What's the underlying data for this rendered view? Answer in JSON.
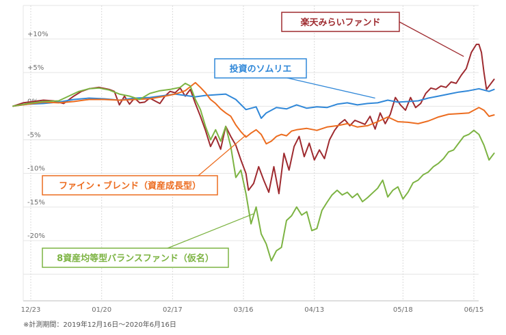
{
  "chart_data": {
    "type": "line",
    "xlabel": "",
    "ylabel": "",
    "ylim": [
      -29,
      14
    ],
    "y_ticks": [
      {
        "value": 10,
        "label": "+10%"
      },
      {
        "value": 5,
        "label": "+5%"
      },
      {
        "value": 0,
        "label": "0%"
      },
      {
        "value": -5,
        "label": "-5%"
      },
      {
        "value": -10,
        "label": "-10%"
      },
      {
        "value": -15,
        "label": "-15%"
      },
      {
        "value": -20,
        "label": "-20%"
      }
    ],
    "x_ticks": [
      {
        "label": "12/23",
        "day": 7
      },
      {
        "label": "01/20",
        "day": 35
      },
      {
        "label": "02/17",
        "day": 63
      },
      {
        "label": "03/16",
        "day": 91
      },
      {
        "label": "04/13",
        "day": 119
      },
      {
        "label": "05/18",
        "day": 154
      },
      {
        "label": "06/15",
        "day": 182
      }
    ],
    "x_range_days": [
      0,
      183
    ],
    "grid": true,
    "series": [
      {
        "name": "楽天みらいファンド",
        "color": "#9e2a2f",
        "points": [
          [
            0,
            0
          ],
          [
            4,
            0.5
          ],
          [
            8,
            0.7
          ],
          [
            12,
            0.9
          ],
          [
            16,
            0.8
          ],
          [
            20,
            0.4
          ],
          [
            24,
            1.5
          ],
          [
            27,
            2.2
          ],
          [
            30,
            2.6
          ],
          [
            34,
            2.8
          ],
          [
            38,
            2.5
          ],
          [
            40,
            2.2
          ],
          [
            42,
            0.2
          ],
          [
            44,
            1.5
          ],
          [
            46,
            0.3
          ],
          [
            48,
            1.2
          ],
          [
            50,
            0.5
          ],
          [
            52,
            0.6
          ],
          [
            54,
            1.2
          ],
          [
            56,
            0.8
          ],
          [
            58,
            0.4
          ],
          [
            60,
            1.5
          ],
          [
            62,
            2.2
          ],
          [
            64,
            2.0
          ],
          [
            66,
            2.7
          ],
          [
            68,
            1.5
          ],
          [
            70,
            2.5
          ],
          [
            72,
            0.4
          ],
          [
            74,
            -1.5
          ],
          [
            76,
            -3.6
          ],
          [
            78,
            -6.0
          ],
          [
            80,
            -4.5
          ],
          [
            82,
            -6.4
          ],
          [
            84,
            -3.0
          ],
          [
            86,
            -4.5
          ],
          [
            88,
            -5.8
          ],
          [
            90,
            -8.0
          ],
          [
            92,
            -10.0
          ],
          [
            93,
            -12.5
          ],
          [
            95,
            -11.5
          ],
          [
            97,
            -9.0
          ],
          [
            99,
            -11.0
          ],
          [
            101,
            -12.8
          ],
          [
            103,
            -9.0
          ],
          [
            105,
            -13.0
          ],
          [
            107,
            -7.0
          ],
          [
            109,
            -9.5
          ],
          [
            111,
            -6.0
          ],
          [
            113,
            -4.5
          ],
          [
            115,
            -7.5
          ],
          [
            117,
            -5.5
          ],
          [
            119,
            -8.0
          ],
          [
            121,
            -6.5
          ],
          [
            123,
            -7.8
          ],
          [
            125,
            -5.0
          ],
          [
            127,
            -3.6
          ],
          [
            129,
            -2.6
          ],
          [
            131,
            -2.0
          ],
          [
            133,
            -2.9
          ],
          [
            135,
            -2.1
          ],
          [
            137,
            -2.4
          ],
          [
            139,
            -2.7
          ],
          [
            141,
            -1.5
          ],
          [
            143,
            -3.4
          ],
          [
            145,
            -1.0
          ],
          [
            147,
            -2.6
          ],
          [
            149,
            -1.2
          ],
          [
            151,
            1.3
          ],
          [
            153,
            0.2
          ],
          [
            155,
            -0.6
          ],
          [
            157,
            1.3
          ],
          [
            159,
            -0.2
          ],
          [
            161,
            0.4
          ],
          [
            163,
            1.9
          ],
          [
            165,
            2.7
          ],
          [
            167,
            2.5
          ],
          [
            169,
            3.0
          ],
          [
            171,
            2.8
          ],
          [
            173,
            3.6
          ],
          [
            175,
            3.4
          ],
          [
            177,
            4.6
          ],
          [
            179,
            5.6
          ],
          [
            181,
            8.0
          ],
          [
            183,
            9.2
          ],
          [
            184,
            9.2
          ],
          [
            185,
            8.0
          ],
          [
            186,
            5.0
          ],
          [
            187,
            2.5
          ],
          [
            188,
            3.0
          ],
          [
            190,
            4.0
          ]
        ]
      },
      {
        "name": "投資のソムリエ",
        "color": "#2f87d8",
        "points": [
          [
            0,
            0
          ],
          [
            6,
            0.3
          ],
          [
            12,
            0.4
          ],
          [
            18,
            0.6
          ],
          [
            24,
            1.0
          ],
          [
            30,
            1.2
          ],
          [
            36,
            1.1
          ],
          [
            42,
            0.9
          ],
          [
            48,
            1.2
          ],
          [
            54,
            1.3
          ],
          [
            60,
            1.6
          ],
          [
            64,
            1.8
          ],
          [
            68,
            1.6
          ],
          [
            72,
            1.4
          ],
          [
            76,
            1.6
          ],
          [
            80,
            1.7
          ],
          [
            84,
            1.8
          ],
          [
            88,
            1.0
          ],
          [
            92,
            -0.5
          ],
          [
            96,
            -0.1
          ],
          [
            98,
            -1.8
          ],
          [
            100,
            -1.0
          ],
          [
            104,
            -0.2
          ],
          [
            108,
            -0.4
          ],
          [
            112,
            0.2
          ],
          [
            116,
            -0.3
          ],
          [
            120,
            -0.1
          ],
          [
            124,
            -0.2
          ],
          [
            128,
            0.3
          ],
          [
            132,
            0.5
          ],
          [
            136,
            0.2
          ],
          [
            140,
            0.4
          ],
          [
            144,
            0.5
          ],
          [
            148,
            0.9
          ],
          [
            152,
            0.6
          ],
          [
            156,
            0.7
          ],
          [
            160,
            0.8
          ],
          [
            164,
            1.2
          ],
          [
            168,
            1.5
          ],
          [
            172,
            1.8
          ],
          [
            176,
            2.1
          ],
          [
            180,
            2.3
          ],
          [
            184,
            2.6
          ],
          [
            188,
            2.2
          ],
          [
            190,
            2.5
          ]
        ]
      },
      {
        "name": "ファイン・ブレンド（資産成長型）",
        "color": "#ec6c1f",
        "points": [
          [
            0,
            0
          ],
          [
            6,
            0.3
          ],
          [
            12,
            0.6
          ],
          [
            18,
            0.5
          ],
          [
            24,
            0.7
          ],
          [
            30,
            1.0
          ],
          [
            36,
            1.0
          ],
          [
            42,
            0.9
          ],
          [
            48,
            1.0
          ],
          [
            54,
            1.1
          ],
          [
            60,
            1.5
          ],
          [
            64,
            1.8
          ],
          [
            68,
            2.3
          ],
          [
            72,
            3.5
          ],
          [
            74,
            2.8
          ],
          [
            76,
            2.0
          ],
          [
            78,
            1.0
          ],
          [
            80,
            0.4
          ],
          [
            82,
            -0.4
          ],
          [
            84,
            -1.0
          ],
          [
            86,
            -1.5
          ],
          [
            88,
            -2.8
          ],
          [
            90,
            -3.8
          ],
          [
            92,
            -4.6
          ],
          [
            94,
            -4.0
          ],
          [
            96,
            -3.5
          ],
          [
            98,
            -4.2
          ],
          [
            100,
            -5.6
          ],
          [
            102,
            -5.2
          ],
          [
            104,
            -4.5
          ],
          [
            106,
            -4.2
          ],
          [
            108,
            -4.4
          ],
          [
            110,
            -3.7
          ],
          [
            112,
            -3.5
          ],
          [
            116,
            -3.3
          ],
          [
            120,
            -3.6
          ],
          [
            124,
            -3.1
          ],
          [
            128,
            -2.9
          ],
          [
            132,
            -2.6
          ],
          [
            136,
            -3.1
          ],
          [
            140,
            -2.9
          ],
          [
            144,
            -2.3
          ],
          [
            148,
            -1.6
          ],
          [
            152,
            -2.3
          ],
          [
            156,
            -2.4
          ],
          [
            160,
            -2.6
          ],
          [
            164,
            -2.2
          ],
          [
            168,
            -1.6
          ],
          [
            172,
            -1.2
          ],
          [
            176,
            -1.1
          ],
          [
            180,
            -1.0
          ],
          [
            184,
            -0.2
          ],
          [
            186,
            -0.6
          ],
          [
            188,
            -1.5
          ],
          [
            190,
            -1.3
          ]
        ]
      },
      {
        "name": "8資産均等型バランスファンド（仮名）",
        "color": "#7cb342",
        "points": [
          [
            0,
            0
          ],
          [
            6,
            0.4
          ],
          [
            12,
            0.7
          ],
          [
            18,
            0.8
          ],
          [
            22,
            1.5
          ],
          [
            26,
            2.2
          ],
          [
            30,
            2.6
          ],
          [
            34,
            2.7
          ],
          [
            38,
            2.4
          ],
          [
            42,
            1.8
          ],
          [
            46,
            1.5
          ],
          [
            50,
            1.0
          ],
          [
            54,
            1.9
          ],
          [
            58,
            2.3
          ],
          [
            62,
            2.5
          ],
          [
            66,
            2.8
          ],
          [
            68,
            3.4
          ],
          [
            70,
            3.0
          ],
          [
            72,
            1.0
          ],
          [
            74,
            -0.5
          ],
          [
            76,
            -3.0
          ],
          [
            78,
            -5.0
          ],
          [
            80,
            -3.5
          ],
          [
            82,
            -5.2
          ],
          [
            84,
            -3.0
          ],
          [
            86,
            -6.0
          ],
          [
            88,
            -10.6
          ],
          [
            90,
            -9.5
          ],
          [
            92,
            -13.0
          ],
          [
            94,
            -17.5
          ],
          [
            96,
            -15.0
          ],
          [
            98,
            -19.0
          ],
          [
            100,
            -20.5
          ],
          [
            102,
            -23.0
          ],
          [
            104,
            -21.5
          ],
          [
            106,
            -21.0
          ],
          [
            108,
            -17.0
          ],
          [
            110,
            -16.3
          ],
          [
            112,
            -15.0
          ],
          [
            114,
            -16.2
          ],
          [
            116,
            -15.7
          ],
          [
            118,
            -18.5
          ],
          [
            120,
            -18.2
          ],
          [
            122,
            -15.5
          ],
          [
            124,
            -14.3
          ],
          [
            126,
            -13.2
          ],
          [
            128,
            -12.5
          ],
          [
            130,
            -13.2
          ],
          [
            132,
            -12.8
          ],
          [
            134,
            -13.6
          ],
          [
            136,
            -13.0
          ],
          [
            138,
            -14.2
          ],
          [
            140,
            -13.6
          ],
          [
            142,
            -12.9
          ],
          [
            144,
            -12.2
          ],
          [
            146,
            -11.0
          ],
          [
            148,
            -13.5
          ],
          [
            150,
            -12.5
          ],
          [
            152,
            -12.0
          ],
          [
            154,
            -13.8
          ],
          [
            156,
            -12.8
          ],
          [
            158,
            -11.4
          ],
          [
            160,
            -11.0
          ],
          [
            162,
            -10.2
          ],
          [
            164,
            -9.8
          ],
          [
            166,
            -9.0
          ],
          [
            168,
            -8.5
          ],
          [
            170,
            -7.8
          ],
          [
            172,
            -6.8
          ],
          [
            174,
            -6.5
          ],
          [
            176,
            -5.5
          ],
          [
            178,
            -4.5
          ],
          [
            180,
            -4.2
          ],
          [
            182,
            -3.6
          ],
          [
            184,
            -4.2
          ],
          [
            186,
            -5.8
          ],
          [
            188,
            -8.0
          ],
          [
            190,
            -7.0
          ]
        ]
      }
    ],
    "labels": [
      {
        "text": "楽天みらいファンド",
        "series": 0,
        "anchor_day": 178,
        "anchor_value": 7.4
      },
      {
        "text": "投資のソムリエ",
        "series": 1,
        "anchor_day": 143,
        "anchor_value": 1.2
      },
      {
        "text": "ファイン・ブレンド（資産成長型）",
        "series": 2,
        "anchor_day": 92,
        "anchor_value": -4.3
      },
      {
        "text": "8資産均等型バランスファンド（仮名）",
        "series": 3,
        "anchor_day": 95,
        "anchor_value": -16.0
      }
    ]
  },
  "footnote": "※計測期間：2019年12月16日〜2020年6月16日"
}
